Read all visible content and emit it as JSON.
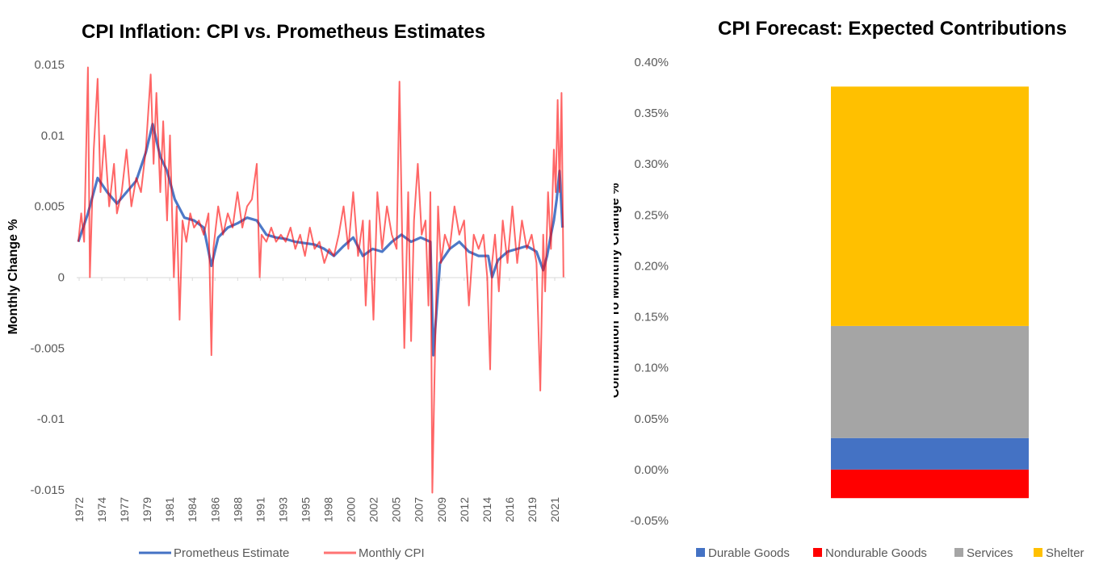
{
  "charts": [
    {
      "title": "CPI Inflation: CPI vs. Prometheus Estimates",
      "ylabel": "Monthly Change %",
      "xticks": [
        "1972",
        "1974",
        "1977",
        "1979",
        "1981",
        "1984",
        "1986",
        "1988",
        "1991",
        "1993",
        "1995",
        "1998",
        "2000",
        "2002",
        "2005",
        "2007",
        "2009",
        "2012",
        "2014",
        "2016",
        "2019",
        "2021"
      ],
      "yticks": [
        "0.015",
        "0.01",
        "0.005",
        "0",
        "-0.005",
        "-0.01",
        "-0.015"
      ],
      "legend": [
        "Prometheus Estimate",
        "Monthly CPI"
      ],
      "colors": {
        "estimate": "#4472C4",
        "cpi": "#FF0000"
      }
    },
    {
      "title": "CPI Forecast: Expected Contributions",
      "ylabel": "Contribution To Monthly Change %",
      "yticks": [
        "0.40%",
        "0.35%",
        "0.30%",
        "0.25%",
        "0.20%",
        "0.15%",
        "0.10%",
        "0.05%",
        "0.00%",
        "-0.05%"
      ],
      "legend": [
        "Durable Goods",
        "Nondurable Goods",
        "Services",
        "Shelter"
      ],
      "colors": {
        "Durable Goods": "#4472C4",
        "Nondurable Goods": "#FF0000",
        "Services": "#A5A5A5",
        "Shelter": "#FFC000"
      }
    }
  ],
  "chart_data": [
    {
      "type": "line",
      "title": "CPI Inflation: CPI vs. Prometheus Estimates",
      "xlabel": "",
      "ylabel": "Monthly Change %",
      "ylim": [
        -0.015,
        0.015
      ],
      "grid": false,
      "legend_position": "bottom",
      "series": [
        {
          "name": "Prometheus Estimate",
          "x": [
            1972.0,
            1973.0,
            1974.0,
            1975.0,
            1976.0,
            1977.0,
            1978.0,
            1979.0,
            1979.7,
            1980.5,
            1981.2,
            1982.0,
            1983.0,
            1984.0,
            1985.0,
            1985.8,
            1986.5,
            1987.5,
            1988.5,
            1989.5,
            1990.5,
            1991.5,
            1992.5,
            1993.5,
            1994.5,
            1995.5,
            1996.5,
            1997.5,
            1998.5,
            1999.5,
            2000.5,
            2001.5,
            2002.5,
            2003.5,
            2004.5,
            2005.5,
            2006.5,
            2007.5,
            2008.5,
            2008.8,
            2009.5,
            2010.5,
            2011.5,
            2012.5,
            2013.5,
            2014.5,
            2014.9,
            2015.5,
            2016.5,
            2017.5,
            2018.5,
            2019.5,
            2020.2,
            2020.6,
            2021.0,
            2021.3,
            2021.6,
            2021.9,
            2022.2
          ],
          "values": [
            0.0025,
            0.0045,
            0.007,
            0.006,
            0.0052,
            0.006,
            0.0068,
            0.0088,
            0.0108,
            0.0085,
            0.0075,
            0.0055,
            0.0042,
            0.004,
            0.0035,
            0.0008,
            0.0028,
            0.0035,
            0.0038,
            0.0042,
            0.004,
            0.003,
            0.0028,
            0.0027,
            0.0025,
            0.0024,
            0.0023,
            0.002,
            0.0015,
            0.0022,
            0.0028,
            0.0015,
            0.002,
            0.0018,
            0.0025,
            0.003,
            0.0025,
            0.0028,
            0.0025,
            -0.0055,
            0.001,
            0.002,
            0.0025,
            0.0018,
            0.0015,
            0.0015,
            0.0,
            0.0012,
            0.0018,
            0.002,
            0.0022,
            0.0018,
            0.0005,
            0.0015,
            0.003,
            0.004,
            0.0055,
            0.0075,
            0.0035
          ]
        },
        {
          "name": "Monthly CPI",
          "x": [
            1972.0,
            1972.3,
            1972.6,
            1973.0,
            1973.2,
            1973.6,
            1974.0,
            1974.3,
            1974.7,
            1975.2,
            1975.7,
            1976.0,
            1976.5,
            1977.0,
            1977.5,
            1978.0,
            1978.5,
            1979.0,
            1979.5,
            1979.8,
            1980.1,
            1980.5,
            1980.8,
            1981.2,
            1981.5,
            1981.9,
            1982.2,
            1982.5,
            1982.8,
            1983.2,
            1983.6,
            1984.0,
            1984.5,
            1985.0,
            1985.5,
            1985.8,
            1986.0,
            1986.5,
            1987.0,
            1987.5,
            1988.0,
            1988.5,
            1989.0,
            1989.5,
            1990.0,
            1990.5,
            1990.8,
            1991.0,
            1991.5,
            1992.0,
            1992.5,
            1993.0,
            1993.5,
            1994.0,
            1994.5,
            1995.0,
            1995.5,
            1996.0,
            1996.5,
            1997.0,
            1997.5,
            1998.0,
            1998.5,
            1999.0,
            1999.5,
            2000.0,
            2000.5,
            2001.0,
            2001.5,
            2001.8,
            2002.2,
            2002.6,
            2003.0,
            2003.5,
            2004.0,
            2004.5,
            2005.0,
            2005.3,
            2005.6,
            2005.8,
            2006.2,
            2006.5,
            2006.8,
            2007.2,
            2007.6,
            2008.0,
            2008.3,
            2008.5,
            2008.7,
            2008.9,
            2009.3,
            2009.6,
            2010.0,
            2010.5,
            2011.0,
            2011.5,
            2012.0,
            2012.5,
            2013.0,
            2013.5,
            2014.0,
            2014.4,
            2014.7,
            2014.9,
            2015.2,
            2015.6,
            2016.0,
            2016.5,
            2017.0,
            2017.5,
            2018.0,
            2018.5,
            2019.0,
            2019.5,
            2019.9,
            2020.2,
            2020.4,
            2020.7,
            2021.0,
            2021.3,
            2021.5,
            2021.7,
            2021.9,
            2022.1,
            2022.3
          ],
          "values": [
            0.0025,
            0.0045,
            0.0025,
            0.0148,
            0.0,
            0.009,
            0.014,
            0.006,
            0.01,
            0.005,
            0.008,
            0.0045,
            0.006,
            0.009,
            0.005,
            0.007,
            0.006,
            0.009,
            0.0143,
            0.008,
            0.013,
            0.006,
            0.011,
            0.004,
            0.01,
            0.0,
            0.005,
            -0.003,
            0.004,
            0.0025,
            0.0045,
            0.0035,
            0.004,
            0.003,
            0.0045,
            -0.0055,
            0.002,
            0.005,
            0.003,
            0.0045,
            0.0035,
            0.006,
            0.0035,
            0.005,
            0.0055,
            0.008,
            0.0,
            0.003,
            0.0025,
            0.0035,
            0.0025,
            0.003,
            0.0025,
            0.0035,
            0.002,
            0.003,
            0.0015,
            0.0035,
            0.002,
            0.0025,
            0.001,
            0.002,
            0.0015,
            0.003,
            0.005,
            0.002,
            0.006,
            0.0015,
            0.004,
            -0.002,
            0.004,
            -0.003,
            0.006,
            0.002,
            0.005,
            0.003,
            0.002,
            0.0138,
            0.002,
            -0.005,
            0.006,
            -0.0045,
            0.004,
            0.008,
            0.003,
            0.004,
            -0.002,
            0.006,
            -0.0152,
            -0.008,
            0.005,
            0.001,
            0.003,
            0.002,
            0.005,
            0.003,
            0.004,
            -0.002,
            0.003,
            0.002,
            0.003,
            0.0,
            -0.0065,
            0.001,
            0.003,
            -0.001,
            0.004,
            0.001,
            0.005,
            0.001,
            0.004,
            0.002,
            0.003,
            0.001,
            -0.008,
            0.003,
            -0.001,
            0.006,
            0.002,
            0.009,
            0.006,
            0.0125,
            0.006,
            0.013,
            0.0
          ]
        }
      ]
    },
    {
      "type": "bar",
      "stacked": true,
      "title": "CPI Forecast: Expected Contributions",
      "xlabel": "",
      "ylabel": "Contribution To Monthly Change %",
      "ylim": [
        -0.05,
        0.4
      ],
      "grid": false,
      "legend_position": "bottom",
      "categories": [
        ""
      ],
      "series": [
        {
          "name": "Durable Goods",
          "values": [
            0.031
          ]
        },
        {
          "name": "Nondurable Goods",
          "values": [
            -0.028
          ]
        },
        {
          "name": "Services",
          "values": [
            0.11
          ]
        },
        {
          "name": "Shelter",
          "values": [
            0.235
          ]
        }
      ]
    }
  ]
}
